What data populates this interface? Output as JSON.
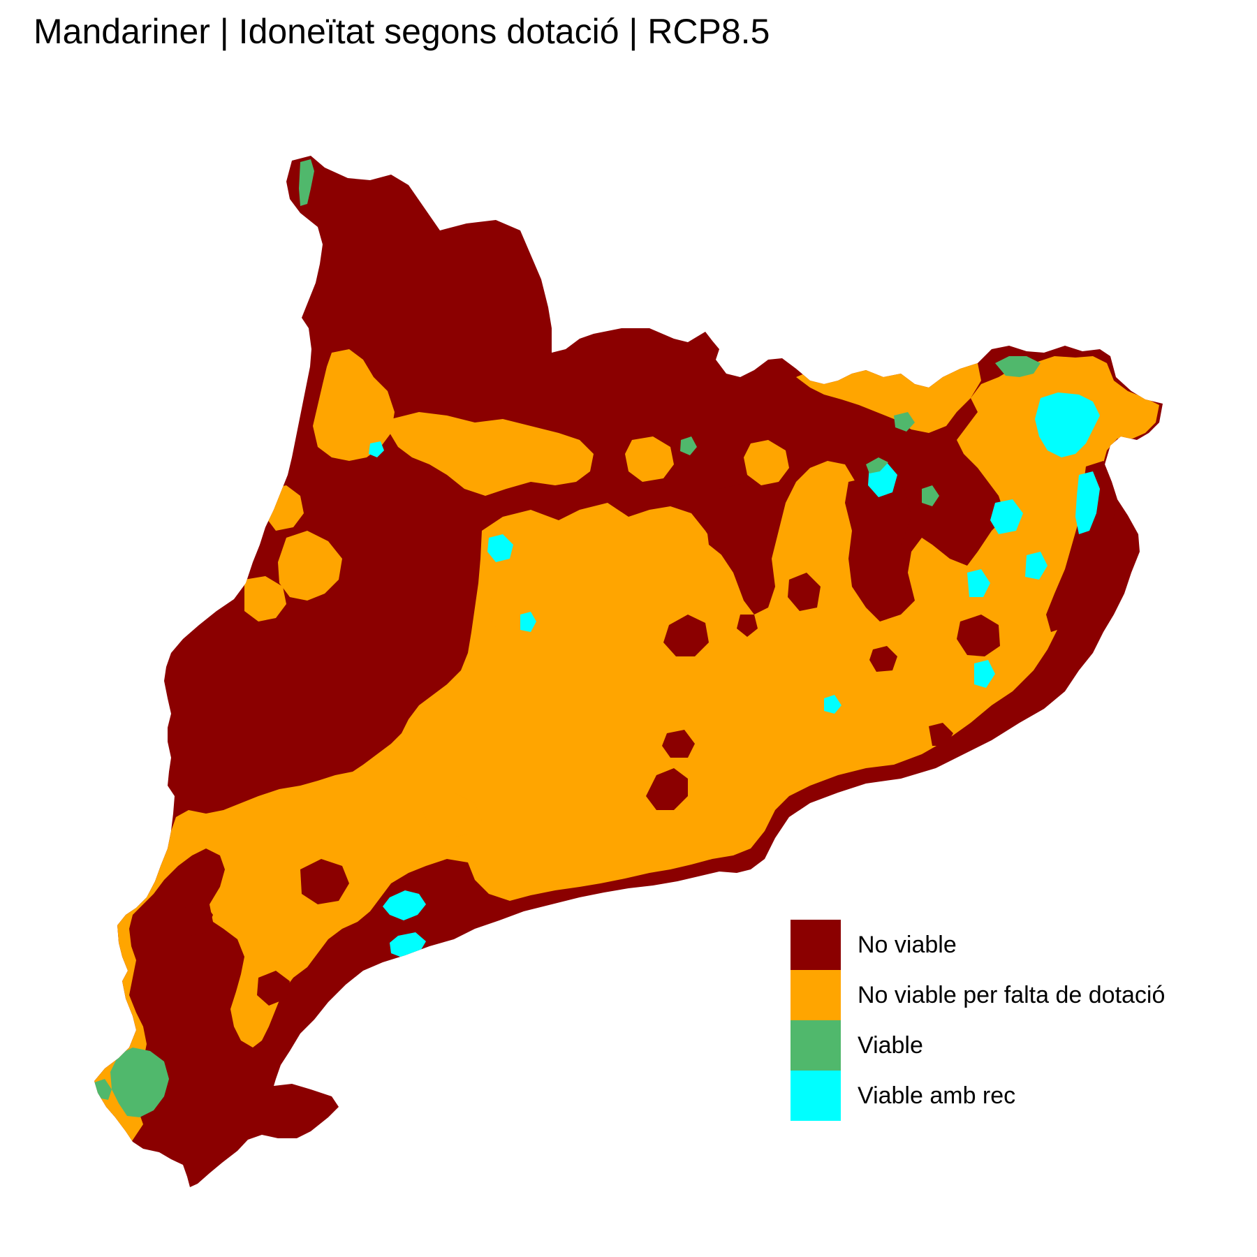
{
  "title": "Mandariner | Idoneïtat segons dotació | RCP8.5",
  "colors": {
    "no_viable": "#8b0000",
    "no_viable_falta_dotacio": "#ffa500",
    "viable": "#50b86c",
    "viable_amb_rec": "#00ffff"
  },
  "legend": {
    "items": [
      {
        "label": "No viable",
        "color": "#8b0000"
      },
      {
        "label": "No viable per falta de dotació",
        "color": "#ffa500"
      },
      {
        "label": "Viable",
        "color": "#50b86c"
      },
      {
        "label": "Viable amb rec",
        "color": "#00ffff"
      }
    ]
  }
}
